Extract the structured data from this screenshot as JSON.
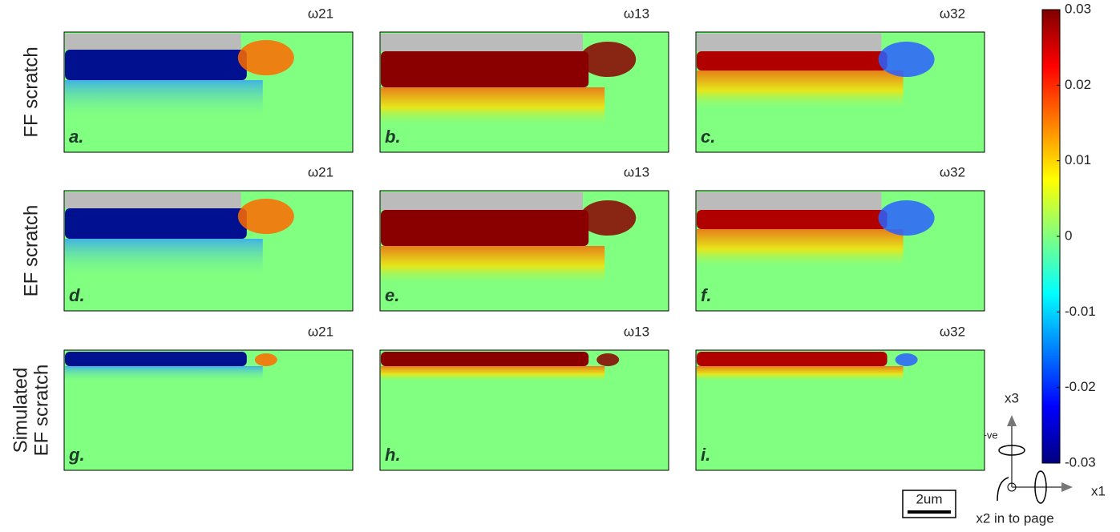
{
  "row_labels": [
    [
      "FF scratch"
    ],
    [
      "EF scratch"
    ],
    [
      "Simulated",
      "EF scratch"
    ]
  ],
  "panels": [
    {
      "label": "a.",
      "title": "ω21"
    },
    {
      "label": "b.",
      "title": "ω13"
    },
    {
      "label": "c.",
      "title": "ω32"
    },
    {
      "label": "d.",
      "title": "ω21"
    },
    {
      "label": "e.",
      "title": "ω13"
    },
    {
      "label": "f.",
      "title": "ω32"
    },
    {
      "label": "g.",
      "title": "ω21"
    },
    {
      "label": "h.",
      "title": "ω13"
    },
    {
      "label": "i.",
      "title": "ω32"
    }
  ],
  "colorbar": {
    "lim": [
      -0.03,
      0.03
    ],
    "ticks": [
      -0.03,
      -0.02,
      -0.01,
      0,
      0.01,
      0.02,
      0.03
    ]
  },
  "axes_key": {
    "vertical": "x3",
    "horizontal": "x1",
    "into_page": "x2 in to page",
    "positive": "+ve"
  },
  "scale_bar": "2um"
}
